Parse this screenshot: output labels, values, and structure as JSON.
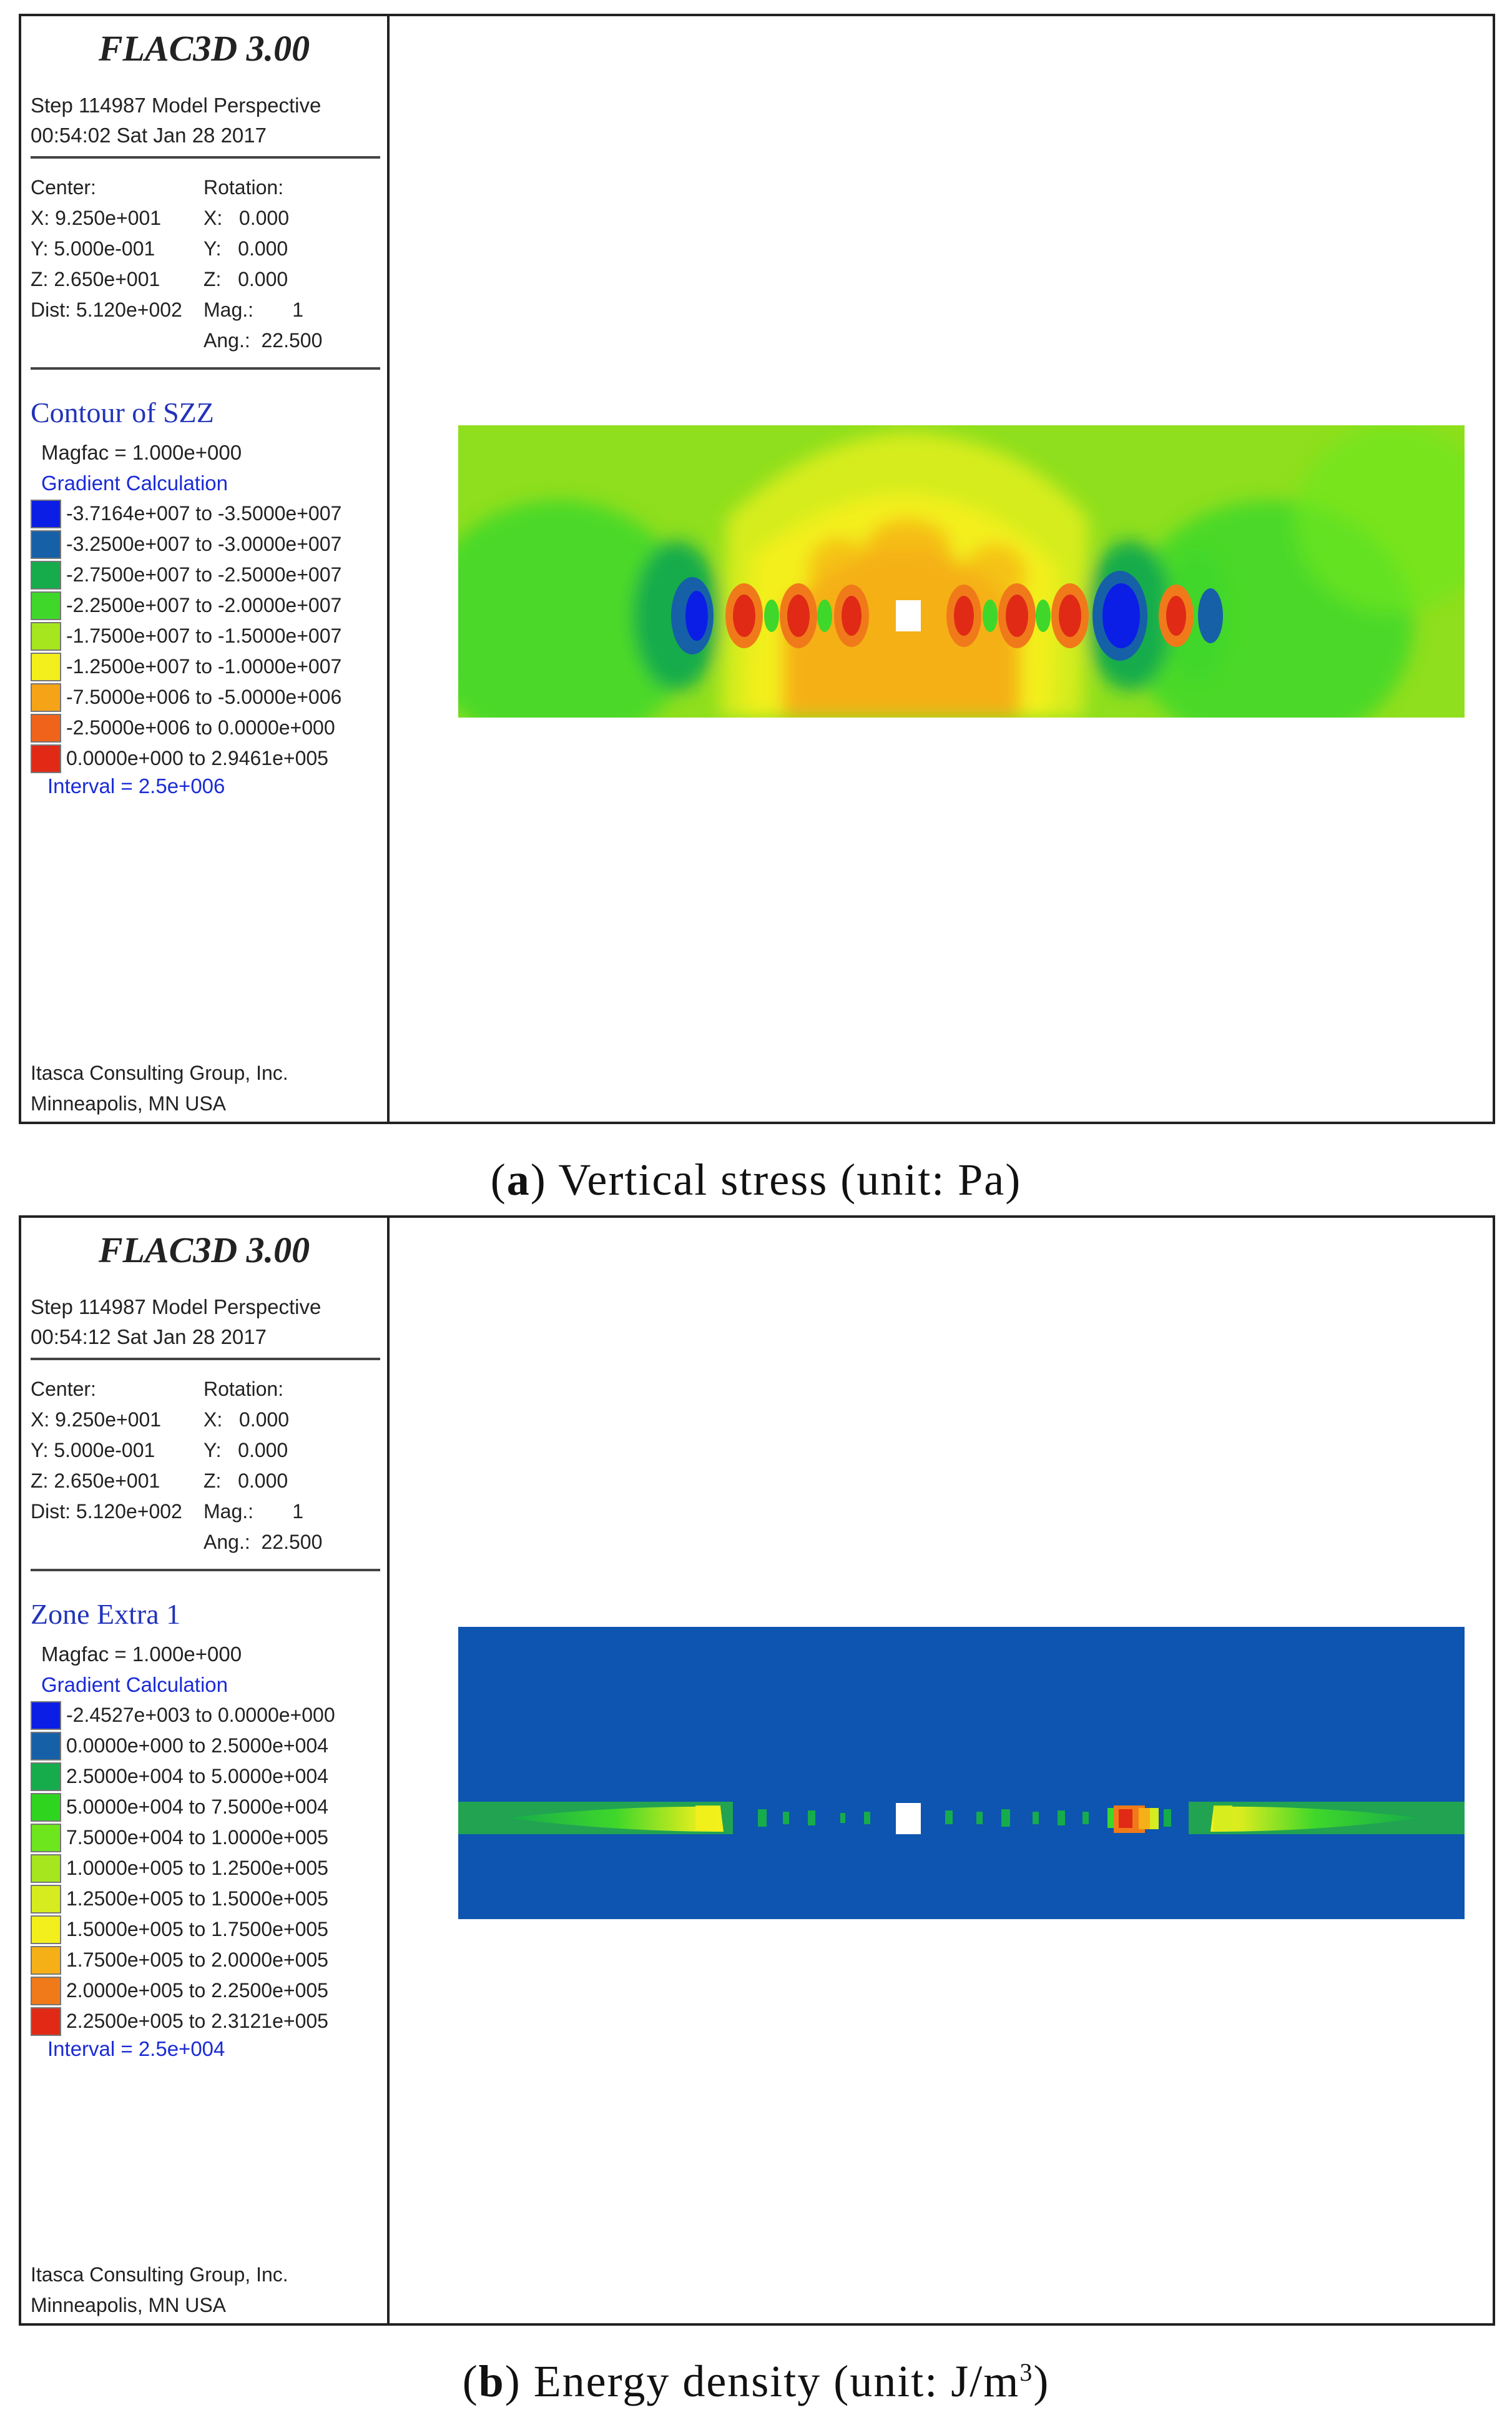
{
  "panels": [
    {
      "brand": "FLAC3D 3.00",
      "step_line": "Step 114987  Model Perspective",
      "time_line": "00:54:02 Sat Jan 28 2017",
      "center_label": "Center:",
      "center_values": "X: 9.250e+001\nY: 5.000e-001\nZ: 2.650e+001\nDist: 5.120e+002",
      "rotation_label": "Rotation:",
      "rotation_values": "X:   0.000\nY:   0.000\nZ:   0.000\nMag.:       1\nAng.:  22.500",
      "contour_title": "Contour of SZZ",
      "magfac": "Magfac =  1.000e+000",
      "gradient": "Gradient Calculation",
      "legend": [
        {
          "range": "-3.7164e+007 to -3.5000e+007",
          "color": "#0a1ee6"
        },
        {
          "range": "-3.2500e+007 to -3.0000e+007",
          "color": "#1660a8"
        },
        {
          "range": "-2.7500e+007 to -2.5000e+007",
          "color": "#16ac4c"
        },
        {
          "range": "-2.2500e+007 to -2.0000e+007",
          "color": "#3fd72a"
        },
        {
          "range": "-1.7500e+007 to -1.5000e+007",
          "color": "#a6e61e"
        },
        {
          "range": "-1.2500e+007 to -1.0000e+007",
          "color": "#f3ef1c"
        },
        {
          "range": "-7.5000e+006 to -5.0000e+006",
          "color": "#f5a418"
        },
        {
          "range": "-2.5000e+006 to  0.0000e+000",
          "color": "#f0631a"
        },
        {
          "range": " 0.0000e+000 to  2.9461e+005",
          "color": "#e02a16"
        }
      ],
      "interval": "Interval =  2.5e+006",
      "footer_1": "Itasca Consulting Group, Inc.",
      "footer_2": "Minneapolis, MN  USA",
      "caption_letter": "a",
      "caption_text": "Vertical stress (unit: Pa)"
    },
    {
      "brand": "FLAC3D 3.00",
      "step_line": "Step 114987  Model Perspective",
      "time_line": "00:54:12 Sat Jan 28 2017",
      "center_label": "Center:",
      "center_values": "X: 9.250e+001\nY: 5.000e-001\nZ: 2.650e+001\nDist: 5.120e+002",
      "rotation_label": "Rotation:",
      "rotation_values": "X:   0.000\nY:   0.000\nZ:   0.000\nMag.:       1\nAng.:  22.500",
      "contour_title": "Zone Extra 1",
      "magfac": "Magfac =  1.000e+000",
      "gradient": "Gradient Calculation",
      "legend": [
        {
          "range": "-2.4527e+003 to  0.0000e+000",
          "color": "#0a1ee6"
        },
        {
          "range": " 0.0000e+000 to  2.5000e+004",
          "color": "#1660a8"
        },
        {
          "range": " 2.5000e+004 to  5.0000e+004",
          "color": "#16ac4c"
        },
        {
          "range": " 5.0000e+004 to  7.5000e+004",
          "color": "#2fd41e"
        },
        {
          "range": " 7.5000e+004 to  1.0000e+005",
          "color": "#6ee61e"
        },
        {
          "range": " 1.0000e+005 to  1.2500e+005",
          "color": "#a6e61e"
        },
        {
          "range": " 1.2500e+005 to  1.5000e+005",
          "color": "#d6ec1e"
        },
        {
          "range": " 1.5000e+005 to  1.7500e+005",
          "color": "#f3ef1c"
        },
        {
          "range": " 1.7500e+005 to  2.0000e+005",
          "color": "#f5b018"
        },
        {
          "range": " 2.0000e+005 to  2.2500e+005",
          "color": "#f07a1a"
        },
        {
          "range": " 2.2500e+005 to  2.3121e+005",
          "color": "#e02a16"
        }
      ],
      "interval": "Interval =  2.5e+004",
      "footer_1": "Itasca Consulting Group, Inc.",
      "footer_2": "Minneapolis, MN  USA",
      "caption_letter": "b",
      "caption_text": "Energy density (unit: J/m",
      "caption_sup": "3",
      "caption_tail": ")"
    }
  ]
}
